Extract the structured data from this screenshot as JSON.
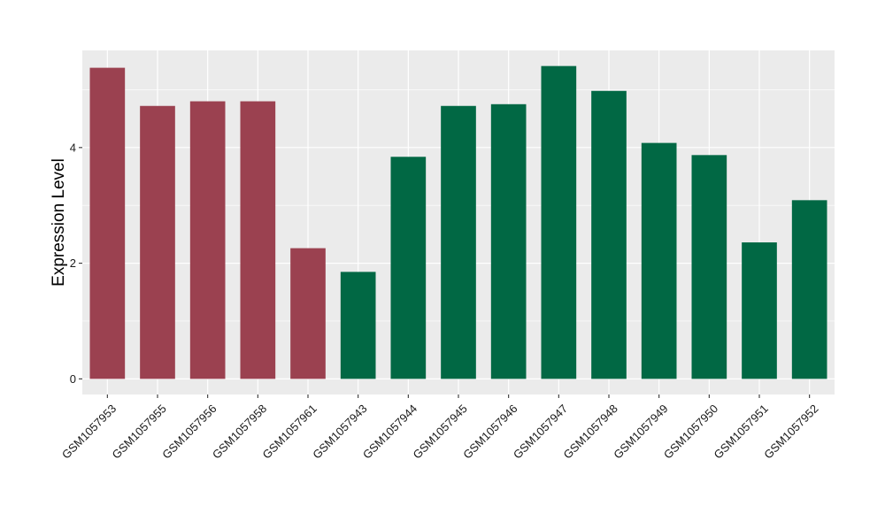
{
  "chart_data": {
    "type": "bar",
    "title": "",
    "xlabel": "",
    "ylabel": "Expression Level",
    "categories": [
      "GSM1057953",
      "GSM1057955",
      "GSM1057956",
      "GSM1057958",
      "GSM1057961",
      "GSM1057943",
      "GSM1057944",
      "GSM1057945",
      "GSM1057946",
      "GSM1057947",
      "GSM1057948",
      "GSM1057949",
      "GSM1057950",
      "GSM1057951",
      "GSM1057952"
    ],
    "values": [
      5.38,
      4.72,
      4.8,
      4.8,
      2.26,
      1.85,
      3.84,
      4.72,
      4.75,
      5.41,
      4.98,
      4.08,
      3.87,
      2.36,
      3.09
    ],
    "bar_colors": [
      "#9b4150",
      "#9b4150",
      "#9b4150",
      "#9b4150",
      "#9b4150",
      "#016844",
      "#016844",
      "#016844",
      "#016844",
      "#016844",
      "#016844",
      "#016844",
      "#016844",
      "#016844",
      "#016844"
    ],
    "ylim": [
      -0.27,
      5.68
    ],
    "yticks": [
      0,
      2,
      4
    ],
    "ytick_labels": [
      "0",
      "2",
      "4"
    ],
    "grid": true,
    "panel_background": "#ebebeb",
    "grid_color": "#ffffff"
  }
}
